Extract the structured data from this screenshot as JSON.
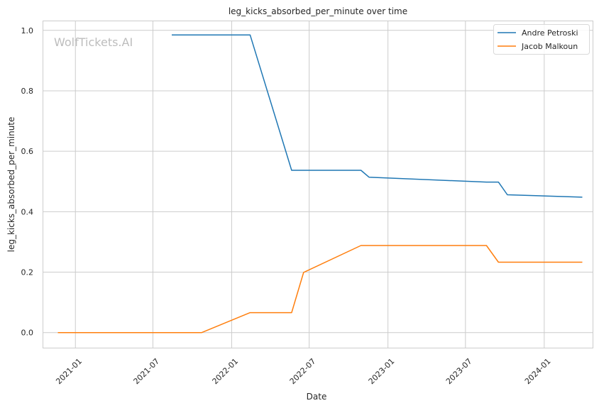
{
  "chart_data": {
    "type": "line",
    "title": "leg_kicks_absorbed_per_minute over time",
    "xlabel": "Date",
    "ylabel": "leg_kicks_absorbed_per_minute",
    "xlim": [
      "2020-10-18",
      "2024-04-23"
    ],
    "ylim": [
      -0.05,
      1.03
    ],
    "x_ticks": [
      {
        "value": "2021-01-01",
        "label": "2021-01"
      },
      {
        "value": "2021-07-01",
        "label": "2021-07"
      },
      {
        "value": "2022-01-01",
        "label": "2022-01"
      },
      {
        "value": "2022-07-01",
        "label": "2022-07"
      },
      {
        "value": "2023-01-01",
        "label": "2023-01"
      },
      {
        "value": "2023-07-01",
        "label": "2023-07"
      },
      {
        "value": "2024-01-01",
        "label": "2024-01"
      }
    ],
    "y_ticks": [
      {
        "value": 0.0,
        "label": "0.0"
      },
      {
        "value": 0.2,
        "label": "0.2"
      },
      {
        "value": 0.4,
        "label": "0.4"
      },
      {
        "value": 0.6,
        "label": "0.6"
      },
      {
        "value": 0.8,
        "label": "0.8"
      },
      {
        "value": 1.0,
        "label": "1.0"
      }
    ],
    "grid": true,
    "legend_position": "top-right",
    "watermark": "WolfTickets.AI",
    "series": [
      {
        "name": "Andre Petroski",
        "color": "#1f77b4",
        "points": [
          [
            "2021-08-14",
            0.985
          ],
          [
            "2022-02-13",
            0.985
          ],
          [
            "2022-05-21",
            0.537
          ],
          [
            "2022-10-30",
            0.537
          ],
          [
            "2022-11-18",
            0.514
          ],
          [
            "2023-08-19",
            0.498
          ],
          [
            "2023-09-16",
            0.498
          ],
          [
            "2023-10-07",
            0.456
          ],
          [
            "2024-03-30",
            0.448
          ]
        ]
      },
      {
        "name": "Jacob Malkoun",
        "color": "#ff7f0e",
        "points": [
          [
            "2020-11-21",
            0.0
          ],
          [
            "2021-10-23",
            0.0
          ],
          [
            "2022-02-13",
            0.066
          ],
          [
            "2022-05-21",
            0.066
          ],
          [
            "2022-06-18",
            0.199
          ],
          [
            "2022-10-30",
            0.288
          ],
          [
            "2023-08-19",
            0.288
          ],
          [
            "2023-09-16",
            0.233
          ],
          [
            "2024-03-30",
            0.233
          ]
        ]
      }
    ]
  }
}
